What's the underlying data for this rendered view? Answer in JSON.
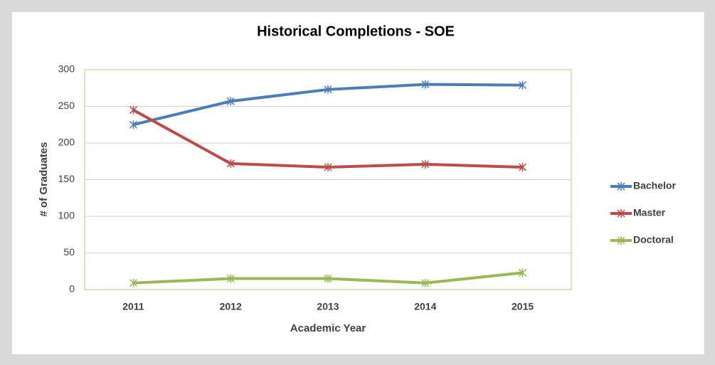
{
  "chart_data": {
    "type": "line",
    "title": "Historical Completions - SOE",
    "x_label": "Academic Year",
    "y_label": "# of Graduates",
    "categories": [
      "2011",
      "2012",
      "2013",
      "2014",
      "2015"
    ],
    "series": [
      {
        "name": "Bachelor",
        "color": "#4a7ebb",
        "values": [
          225,
          257,
          273,
          280,
          279
        ]
      },
      {
        "name": "Master",
        "color": "#be4b48",
        "values": [
          245,
          172,
          167,
          171,
          167
        ]
      },
      {
        "name": "Doctoral",
        "color": "#98b954",
        "values": [
          9,
          15,
          15,
          9,
          23
        ]
      }
    ],
    "ylim": [
      0,
      300
    ],
    "yticks": [
      0,
      50,
      100,
      150,
      200,
      250,
      300
    ],
    "grid": true,
    "legend": "right"
  }
}
